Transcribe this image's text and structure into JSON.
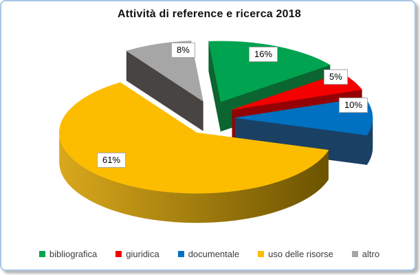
{
  "chart_data": {
    "type": "pie",
    "style": "3d-exploded",
    "title": "Attività di reference e ricerca 2018",
    "labels": [
      "bibliografica",
      "giuridica",
      "documentale",
      "uso delle risorse",
      "altro"
    ],
    "values": [
      16,
      5,
      10,
      61,
      8
    ],
    "unit": "%",
    "data_labels": [
      "16%",
      "5%",
      "10%",
      "61%",
      "8%"
    ],
    "colors": [
      "#00A350",
      "#F40000",
      "#0070C0",
      "#FCBD00",
      "#A6A6A6"
    ],
    "side_colors": [
      "#0B6530",
      "#930305",
      "#1A4063",
      "#8A6A00",
      "#474441"
    ],
    "rim_gradient": [
      "#D9A81C",
      "#6B5300"
    ],
    "legend_position": "bottom",
    "frame": {
      "border_color": "#A7C5E6",
      "background": "#FFFFFF"
    }
  }
}
